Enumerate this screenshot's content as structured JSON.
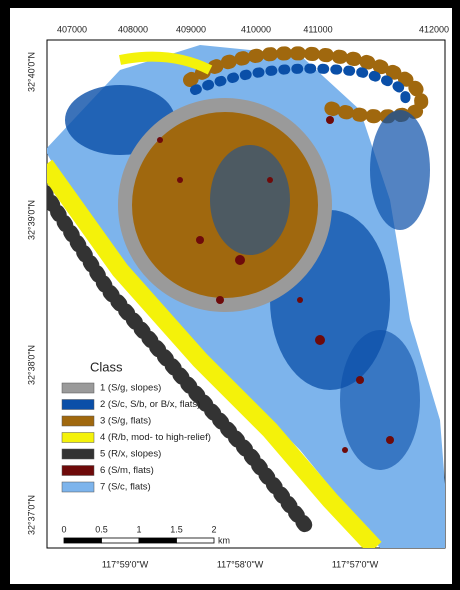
{
  "top_axis": [
    "407000",
    "408000",
    "409000",
    "410000",
    "411000",
    "412000"
  ],
  "left_axis": [
    "32°40'0\"N",
    "32°39'0\"N",
    "32°38'0\"N",
    "32°37'0\"N"
  ],
  "bottom_axis": [
    "117°59'0\"W",
    "117°58'0\"W",
    "117°57'0\"W"
  ],
  "legend": {
    "title": "Class",
    "items": [
      {
        "label": "1 (S/g, slopes)",
        "color": "#9a9a9a"
      },
      {
        "label": "2 (S/c, S/b, or B/x, flats)",
        "color": "#0a4fa8"
      },
      {
        "label": "3 (S/g, flats)",
        "color": "#a0680e"
      },
      {
        "label": "4 (R/b, mod- to high-relief)",
        "color": "#f4f20a"
      },
      {
        "label": "5 (R/x, slopes)",
        "color": "#333333"
      },
      {
        "label": "6 (S/m, flats)",
        "color": "#6e0a0a"
      },
      {
        "label": "7 (S/c, flats)",
        "color": "#7db4ec"
      }
    ]
  },
  "scale_bar": {
    "labels": [
      "0",
      "0.5",
      "1",
      "1.5",
      "2"
    ],
    "unit": "km"
  }
}
